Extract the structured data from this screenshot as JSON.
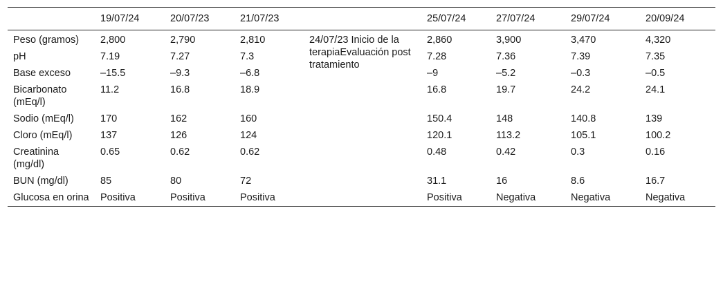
{
  "table": {
    "headers": [
      "",
      "19/07/24",
      "20/07/23",
      "21/07/23",
      "",
      "25/07/24",
      "27/07/24",
      "29/07/24",
      "20/09/24"
    ],
    "event_note": "24/07/23 Inicio de la terapiaEvaluación post tratamiento",
    "rows": [
      {
        "label": "Peso (gramos)",
        "values": [
          "2,800",
          "2,790",
          "2,810",
          "2,860",
          "3,900",
          "3,470",
          "4,320"
        ]
      },
      {
        "label": "pH",
        "values": [
          "7.19",
          "7.27",
          "7.3",
          "7.28",
          "7.36",
          "7.39",
          "7.35"
        ]
      },
      {
        "label": "Base exceso",
        "values": [
          "–15.5",
          "–9.3",
          "–6.8",
          "–9",
          "–5.2",
          "–0.3",
          "–0.5"
        ]
      },
      {
        "label": "Bicarbonato (mEq/l)",
        "values": [
          "11.2",
          "16.8",
          "18.9",
          "16.8",
          "19.7",
          "24.2",
          "24.1"
        ]
      },
      {
        "label": "Sodio (mEq/l)",
        "values": [
          "170",
          "162",
          "160",
          "150.4",
          "148",
          "140.8",
          "139"
        ]
      },
      {
        "label": "Cloro (mEq/l)",
        "values": [
          "137",
          "126",
          "124",
          "120.1",
          "113.2",
          "105.1",
          "100.2"
        ]
      },
      {
        "label": "Creatinina (mg/dl)",
        "values": [
          "0.65",
          "0.62",
          "0.62",
          "0.48",
          "0.42",
          "0.3",
          "0.16"
        ]
      },
      {
        "label": "BUN (mg/dl)",
        "values": [
          "85",
          "80",
          "72",
          "31.1",
          "16",
          "8.6",
          "16.7"
        ]
      },
      {
        "label": "Glucosa en orina",
        "values": [
          "Positiva",
          "Positiva",
          "Positiva",
          "Positiva",
          "Negativa",
          "Negativa",
          "Negativa"
        ]
      }
    ]
  }
}
